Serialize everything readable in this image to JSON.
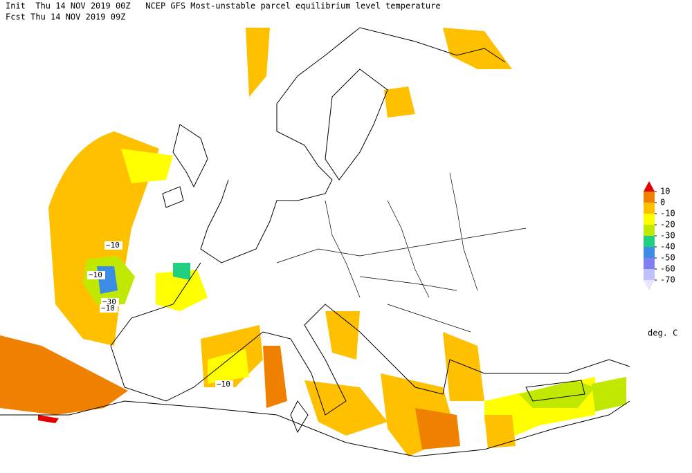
{
  "header": {
    "line1": "Init  Thu 14 NOV 2019 00Z   NCEP GFS Most-unstable parcel equilibrium level temperature",
    "line2": "Fcst Thu 14 NOV 2019 09Z"
  },
  "legend": {
    "ticks": [
      10,
      0,
      -10,
      -20,
      -30,
      -40,
      -50,
      -60,
      -70
    ],
    "colors": [
      "#e60000",
      "#f08000",
      "#ffc000",
      "#ffff00",
      "#c0e800",
      "#20d080",
      "#3c8ce6",
      "#8080f0",
      "#c0c0ff",
      "#e6e6ff"
    ],
    "unit": "deg. C"
  },
  "map": {
    "contour_labels": [
      "−10",
      "−10",
      "−30",
      "−10",
      "−10"
    ]
  }
}
